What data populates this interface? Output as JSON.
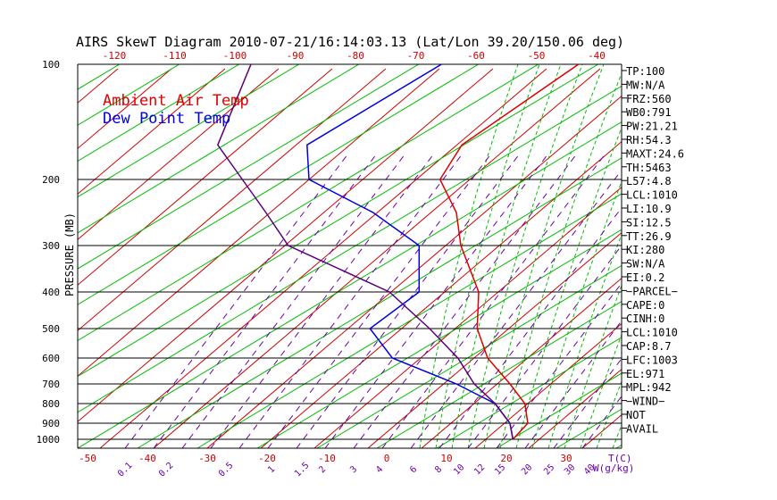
{
  "chart_data": {
    "type": "line",
    "title": "AIRS SkewT Diagram 2010-07-21/16:14:03.13 (Lat/Lon 39.20/150.06 deg)",
    "ylabel": "PRESSURE (MB)",
    "xlabel_bottom": "T(C)",
    "mixing_unit": "W(g/kg)",
    "top_ticks": [
      "-120",
      "-110",
      "-100",
      "-90",
      "-80",
      "-70",
      "-60",
      "-50",
      "-40"
    ],
    "bottom_ticks": [
      "-50",
      "-40",
      "-30",
      "-20",
      "-10",
      "0",
      "10",
      "20",
      "30"
    ],
    "pressure_levels": [
      100,
      200,
      300,
      400,
      500,
      600,
      700,
      800,
      900,
      1000
    ],
    "mixing_ratio_labels": [
      "0.1",
      "0.2",
      "0.5",
      "1",
      "1.5",
      "2",
      "3",
      "4",
      "6",
      "8",
      "10",
      "12",
      "15",
      "20",
      "25",
      "30",
      "40"
    ],
    "legend": [
      "Ambient Air Temp",
      "Dew Point Temp"
    ],
    "colors": {
      "temp": "#dd0000",
      "dew": "#0000dd",
      "parcel": "#5a007a",
      "dry_adiabat": "#cc0000",
      "moist_adiabat": "#00bb00",
      "mixing": "#6a00aa",
      "isobar": "#000000"
    },
    "series": [
      {
        "name": "Ambient Air Temp",
        "points": [
          [
            100,
            -75
          ],
          [
            170,
            -72
          ],
          [
            200,
            -66
          ],
          [
            250,
            -54
          ],
          [
            300,
            -44
          ],
          [
            400,
            -28
          ],
          [
            500,
            -18
          ],
          [
            600,
            -8
          ],
          [
            700,
            3
          ],
          [
            800,
            11
          ],
          [
            900,
            17
          ],
          [
            1000,
            19
          ]
        ]
      },
      {
        "name": "Dew Point Temp",
        "points": [
          [
            100,
            -98
          ],
          [
            170,
            -98
          ],
          [
            200,
            -88
          ],
          [
            250,
            -68
          ],
          [
            300,
            -51
          ],
          [
            400,
            -38
          ],
          [
            500,
            -36
          ],
          [
            600,
            -24
          ],
          [
            700,
            -6
          ],
          [
            800,
            6
          ],
          [
            900,
            14
          ],
          [
            1000,
            19
          ]
        ]
      },
      {
        "name": "Parcel",
        "points": [
          [
            100,
            -130
          ],
          [
            170,
            -113
          ],
          [
            250,
            -86
          ],
          [
            300,
            -73
          ],
          [
            400,
            -43
          ],
          [
            500,
            -26
          ],
          [
            600,
            -13
          ],
          [
            700,
            -3
          ],
          [
            800,
            6
          ],
          [
            900,
            14
          ],
          [
            1000,
            19
          ]
        ]
      }
    ],
    "stats": [
      "TP:100",
      "MW:N/A",
      "FRZ:560",
      "WB0:791",
      "PW:21.21",
      "RH:54.3",
      "MAXT:24.6",
      "TH:5463",
      "L57:4.8",
      "LCL:1010",
      "LI:10.9",
      "SI:12.5",
      "TT:26.9",
      "KI:280",
      "SW:N/A",
      "EI:0.2",
      "−PARCEL−",
      "CAPE:0",
      "CINH:0",
      "LCL:1010",
      "CAP:8.7",
      "LFC:1003",
      "EL:971",
      "MPL:942",
      "−WIND−",
      "NOT",
      "AVAIL"
    ]
  }
}
